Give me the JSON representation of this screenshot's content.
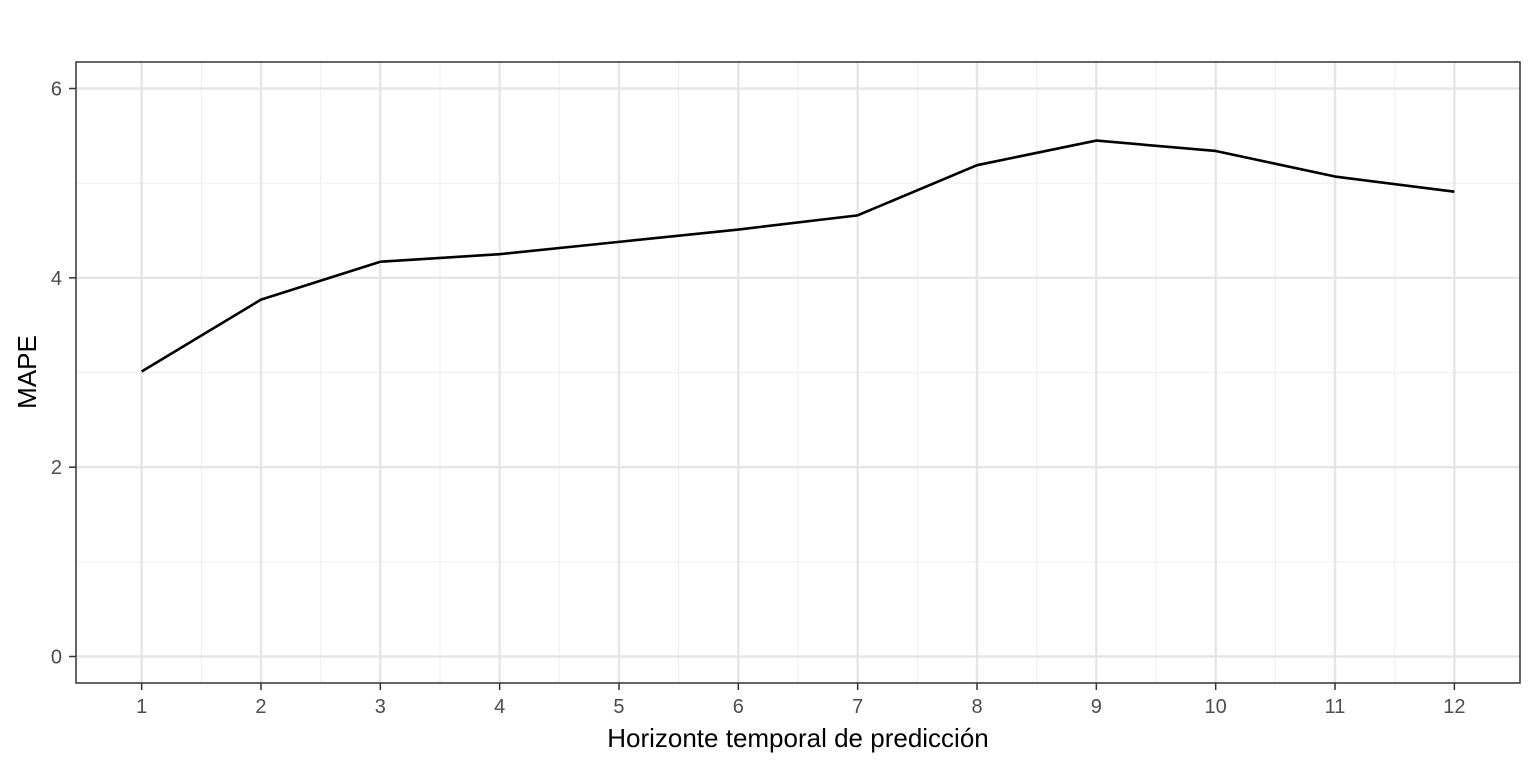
{
  "chart_data": {
    "type": "line",
    "title": "",
    "xlabel": "Horizonte temporal de predicción",
    "ylabel": "MAPE",
    "x": [
      1,
      2,
      3,
      4,
      5,
      6,
      7,
      8,
      9,
      10,
      11,
      12
    ],
    "series": [
      {
        "values": [
          3.01,
          3.77,
          4.17,
          4.25,
          4.38,
          4.51,
          4.66,
          5.19,
          5.45,
          5.34,
          5.07,
          4.91
        ],
        "color": "#000000"
      }
    ],
    "xlim": [
      0.45,
      12.55
    ],
    "ylim": [
      -0.28,
      6.28
    ],
    "x_ticks": [
      1,
      2,
      3,
      4,
      5,
      6,
      7,
      8,
      9,
      10,
      11,
      12
    ],
    "y_ticks": [
      0,
      2,
      4,
      6
    ],
    "grid": true,
    "legend": "none"
  }
}
